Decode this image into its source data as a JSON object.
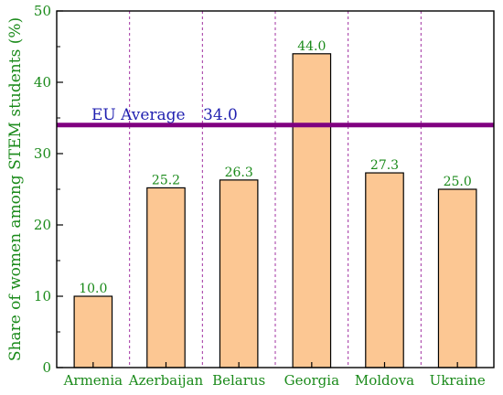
{
  "chart_data": {
    "type": "bar",
    "categories": [
      "Armenia",
      "Azerbaijan",
      "Belarus",
      "Georgia",
      "Moldova",
      "Ukraine"
    ],
    "values": [
      10.0,
      25.2,
      26.3,
      44.0,
      27.3,
      25.0
    ],
    "value_labels": [
      "10.0",
      "25.2",
      "26.3",
      "44.0",
      "27.3",
      "25.0"
    ],
    "title": "",
    "xlabel": "",
    "ylabel": "Share of women among STEM students (%)",
    "ylim": [
      0,
      50
    ],
    "yticks": [
      0,
      10,
      20,
      30,
      40,
      50
    ],
    "ytick_labels": [
      "0",
      "10",
      "20",
      "30",
      "40",
      "50"
    ],
    "reference_line": {
      "label": "EU Average",
      "value": 34.0,
      "value_label": "34.0",
      "color": "#800080"
    },
    "grid": "vertical dotted lines between categories",
    "colors": {
      "bar_fill": "#fcc793",
      "bar_stroke": "#000000",
      "text": "#1a8a1a",
      "separator": "#a030a0",
      "reference_text": "#1f1fb0"
    }
  }
}
